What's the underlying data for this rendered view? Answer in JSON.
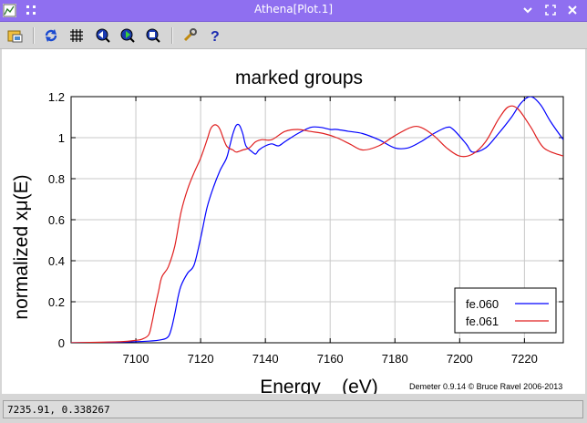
{
  "window": {
    "title": "Athena[Plot.1]"
  },
  "titlebar_icons": [
    "app-icon",
    "move-icon",
    "minimize-icon",
    "maximize-icon",
    "close-icon"
  ],
  "toolbar": {
    "buttons": [
      {
        "name": "open-icon"
      },
      {
        "name": "refresh-icon"
      },
      {
        "name": "grid-icon"
      },
      {
        "name": "zoom-back-icon"
      },
      {
        "name": "zoom-forward-icon"
      },
      {
        "name": "zoom-reset-icon"
      },
      {
        "name": "settings-icon"
      },
      {
        "name": "help-icon"
      }
    ]
  },
  "colors": {
    "series1": "#0000ff",
    "series2": "#e02020",
    "titlebar": "#8f6ff0"
  },
  "chart_data": {
    "type": "line",
    "title": "marked groups",
    "xlabel": "Energy    (eV)",
    "ylabel": "normalized xμ(E)",
    "xlim": [
      7080,
      7232
    ],
    "ylim": [
      0,
      1.2
    ],
    "xticks": [
      7100,
      7120,
      7140,
      7160,
      7180,
      7200,
      7220
    ],
    "yticks": [
      0,
      0.2,
      0.4,
      0.6,
      0.8,
      1,
      1.2
    ],
    "ytick_labels": [
      "0",
      "0.2",
      "0.4",
      "0.6",
      "0.8",
      "1",
      "1.2"
    ],
    "grid": true,
    "legend_position": "bottom-right",
    "credit": "Demeter 0.9.14 © Bruce Ravel 2006-2013",
    "series": [
      {
        "name": "fe.060",
        "color": "#0000ff",
        "x": [
          7080,
          7095,
          7104,
          7108,
          7110,
          7111,
          7112,
          7113,
          7114,
          7116,
          7118,
          7120,
          7122,
          7124,
          7126,
          7128,
          7129,
          7130,
          7131,
          7132,
          7133,
          7134,
          7136,
          7137,
          7138,
          7140,
          7142,
          7144,
          7146,
          7150,
          7154,
          7157,
          7160,
          7162,
          7166,
          7170,
          7175,
          7180,
          7184,
          7188,
          7192,
          7196,
          7198,
          7202,
          7204,
          7208,
          7212,
          7216,
          7219,
          7222,
          7225,
          7228,
          7232
        ],
        "y": [
          0,
          0.003,
          0.008,
          0.015,
          0.03,
          0.07,
          0.14,
          0.22,
          0.28,
          0.34,
          0.38,
          0.51,
          0.66,
          0.76,
          0.84,
          0.9,
          0.96,
          1.02,
          1.06,
          1.06,
          1.02,
          0.96,
          0.93,
          0.92,
          0.94,
          0.96,
          0.97,
          0.96,
          0.98,
          1.02,
          1.05,
          1.05,
          1.04,
          1.04,
          1.03,
          1.02,
          0.99,
          0.95,
          0.95,
          0.98,
          1.02,
          1.05,
          1.04,
          0.97,
          0.93,
          0.95,
          1.02,
          1.1,
          1.17,
          1.2,
          1.16,
          1.08,
          0.99
        ]
      },
      {
        "name": "fe.061",
        "color": "#e02020",
        "x": [
          7080,
          7095,
          7100,
          7102,
          7104,
          7105,
          7106,
          7107,
          7108,
          7110,
          7112,
          7114,
          7116,
          7118,
          7120,
          7122,
          7123,
          7124,
          7125,
          7126,
          7128,
          7130,
          7131,
          7133,
          7135,
          7137,
          7139,
          7142,
          7146,
          7150,
          7154,
          7158,
          7162,
          7166,
          7170,
          7175,
          7180,
          7185,
          7188,
          7192,
          7196,
          7200,
          7204,
          7208,
          7212,
          7215,
          7218,
          7222,
          7226,
          7232
        ],
        "y": [
          0,
          0.005,
          0.012,
          0.018,
          0.04,
          0.1,
          0.18,
          0.25,
          0.32,
          0.37,
          0.47,
          0.64,
          0.75,
          0.83,
          0.9,
          0.99,
          1.04,
          1.06,
          1.06,
          1.04,
          0.96,
          0.94,
          0.93,
          0.94,
          0.95,
          0.98,
          0.99,
          0.99,
          1.03,
          1.04,
          1.03,
          1.02,
          1.0,
          0.97,
          0.94,
          0.96,
          1.01,
          1.05,
          1.05,
          1.01,
          0.95,
          0.91,
          0.92,
          0.98,
          1.09,
          1.15,
          1.14,
          1.05,
          0.95,
          0.91
        ]
      }
    ]
  },
  "statusbar": {
    "text": "7235.91,  0.338267"
  }
}
